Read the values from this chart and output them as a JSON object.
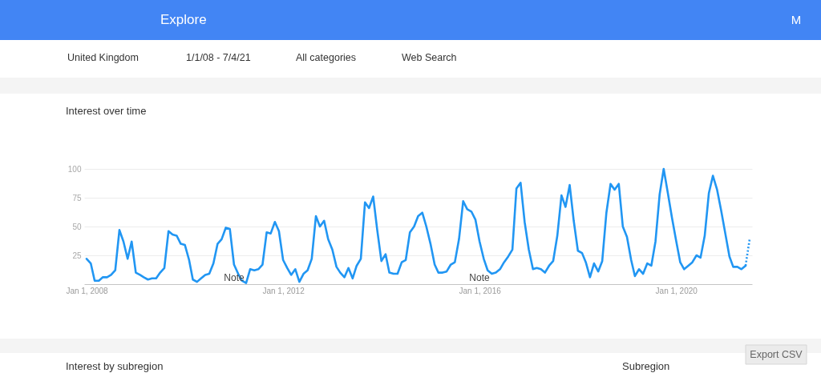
{
  "chart_data": {
    "type": "line",
    "title": "Interest over time",
    "annotations": [
      "Explore",
      "United Kingdom",
      "1/1/08 - 7/4/21",
      "All categories",
      "Web Search",
      "M",
      "Interest by subregion",
      "Subregion",
      "Export CSV",
      "Note",
      "Note"
    ],
    "x": [
      "2008-01",
      "2008-02",
      "2008-03",
      "2008-04",
      "2008-05",
      "2008-06",
      "2008-07",
      "2008-08",
      "2008-09",
      "2008-10",
      "2008-11",
      "2008-12",
      "2009-01",
      "2009-02",
      "2009-03",
      "2009-04",
      "2009-05",
      "2009-06",
      "2009-07",
      "2009-08",
      "2009-09",
      "2009-10",
      "2009-11",
      "2009-12",
      "2010-01",
      "2010-02",
      "2010-03",
      "2010-04",
      "2010-05",
      "2010-06",
      "2010-07",
      "2010-08",
      "2010-09",
      "2010-10",
      "2010-11",
      "2010-12",
      "2011-01",
      "2011-02",
      "2011-03",
      "2011-04",
      "2011-05",
      "2011-06",
      "2011-07",
      "2011-08",
      "2011-09",
      "2011-10",
      "2011-11",
      "2011-12",
      "2012-01",
      "2012-02",
      "2012-03",
      "2012-04",
      "2012-05",
      "2012-06",
      "2012-07",
      "2012-08",
      "2012-09",
      "2012-10",
      "2012-11",
      "2012-12",
      "2013-01",
      "2013-02",
      "2013-03",
      "2013-04",
      "2013-05",
      "2013-06",
      "2013-07",
      "2013-08",
      "2013-09",
      "2013-10",
      "2013-11",
      "2013-12",
      "2014-01",
      "2014-02",
      "2014-03",
      "2014-04",
      "2014-05",
      "2014-06",
      "2014-07",
      "2014-08",
      "2014-09",
      "2014-10",
      "2014-11",
      "2014-12",
      "2015-01",
      "2015-02",
      "2015-03",
      "2015-04",
      "2015-05",
      "2015-06",
      "2015-07",
      "2015-08",
      "2015-09",
      "2015-10",
      "2015-11",
      "2015-12",
      "2016-01",
      "2016-02",
      "2016-03",
      "2016-04",
      "2016-05",
      "2016-06",
      "2016-07",
      "2016-08",
      "2016-09",
      "2016-10",
      "2016-11",
      "2016-12",
      "2017-01",
      "2017-02",
      "2017-03",
      "2017-04",
      "2017-05",
      "2017-06",
      "2017-07",
      "2017-08",
      "2017-09",
      "2017-10",
      "2017-11",
      "2017-12",
      "2018-01",
      "2018-02",
      "2018-03",
      "2018-04",
      "2018-05",
      "2018-06",
      "2018-07",
      "2018-08",
      "2018-09",
      "2018-10",
      "2018-11",
      "2018-12",
      "2019-01",
      "2019-02",
      "2019-03",
      "2019-04",
      "2019-05",
      "2019-06",
      "2019-07",
      "2019-08",
      "2019-09",
      "2019-10",
      "2019-11",
      "2019-12",
      "2020-01",
      "2020-02",
      "2020-03",
      "2020-04",
      "2020-05",
      "2020-06",
      "2020-07",
      "2020-08",
      "2020-09",
      "2020-10",
      "2020-11",
      "2020-12",
      "2021-01",
      "2021-02",
      "2021-03",
      "2021-04",
      "2021-05",
      "2021-06"
    ],
    "series": [
      {
        "color": "#2196f3",
        "values": [
          22,
          18,
          3,
          3,
          6,
          6,
          8,
          12,
          47,
          37,
          22,
          37,
          10,
          8,
          6,
          4,
          5,
          5,
          10,
          14,
          46,
          43,
          42,
          35,
          34,
          21,
          4,
          2,
          5,
          8,
          9,
          18,
          35,
          39,
          49,
          48,
          17,
          9,
          3,
          1,
          13,
          12,
          13,
          17,
          45,
          44,
          54,
          46,
          21,
          14,
          8,
          13,
          2,
          9,
          12,
          22,
          59,
          50,
          55,
          39,
          30,
          15,
          10,
          6,
          14,
          5,
          16,
          22,
          71,
          66,
          76,
          47,
          20,
          26,
          10,
          9,
          9,
          19,
          21,
          45,
          50,
          59,
          62,
          50,
          35,
          17,
          10,
          10,
          11,
          17,
          19,
          39,
          72,
          65,
          63,
          56,
          37,
          22,
          12,
          9,
          10,
          13,
          19,
          24,
          30,
          83,
          88,
          54,
          30,
          13,
          14,
          13,
          10,
          16,
          20,
          42,
          77,
          67,
          86,
          55,
          29,
          27,
          19,
          6,
          18,
          11,
          20,
          62,
          87,
          82,
          87,
          50,
          41,
          21,
          7,
          13,
          9,
          18,
          16,
          37,
          78,
          100,
          79,
          58,
          38,
          19,
          13,
          16,
          19,
          25,
          23,
          42,
          79,
          94,
          82,
          64,
          44,
          24,
          15,
          15,
          13,
          16
        ]
      },
      {
        "color": "#2196f3",
        "line_style": "dotted",
        "x": [
          "2021-06",
          "2021-07"
        ],
        "values": [
          16,
          39
        ]
      }
    ],
    "xlim": [
      "2007-12-14",
      "2021-07-19"
    ],
    "xticks": [
      {
        "value": "2008-01-01",
        "label": "Jan 1, 2008"
      },
      {
        "value": "2012-01-01",
        "label": "Jan 1, 2012"
      },
      {
        "value": "2016-01-01",
        "label": "Jan 1, 2016"
      },
      {
        "value": "2020-01-01",
        "label": "Jan 1, 2020"
      }
    ],
    "ylim": [
      0,
      100
    ],
    "yticks": [
      25,
      50,
      75,
      100
    ],
    "grid": "y"
  }
}
